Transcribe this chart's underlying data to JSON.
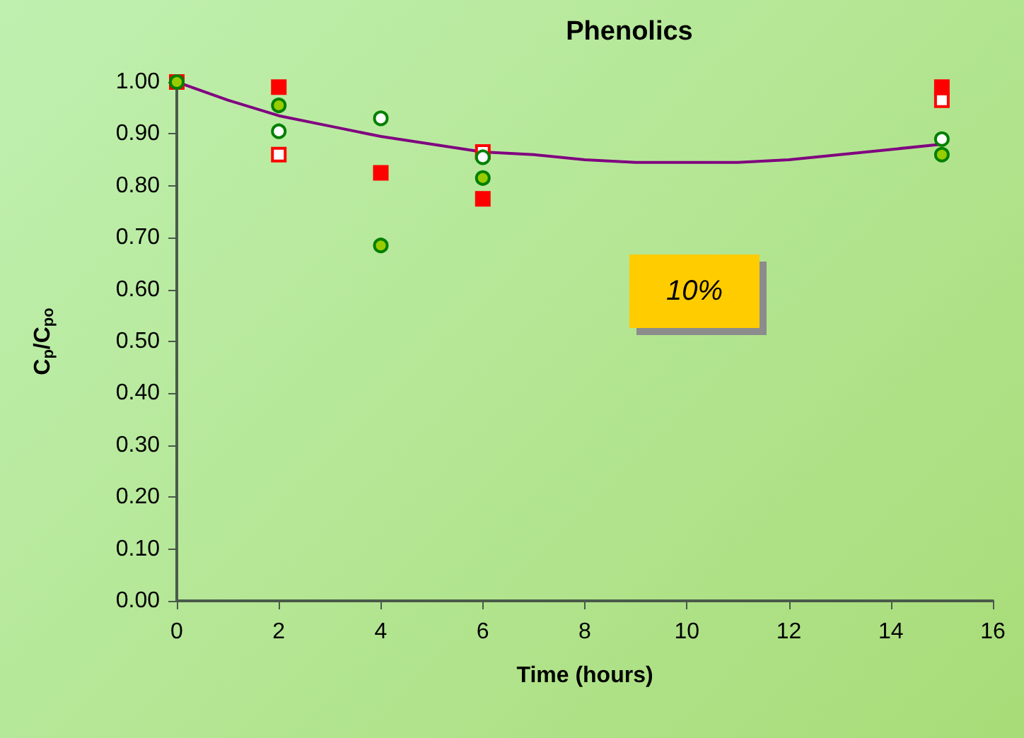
{
  "chart_data": {
    "type": "scatter",
    "title": "Phenolics",
    "xlabel": "Time (hours)",
    "ylabel": "C$_{p}$/C$_{po}$",
    "annotations": [
      "10%"
    ],
    "x": [
      0,
      2,
      4,
      6,
      15
    ],
    "xlim": [
      0,
      16
    ],
    "xticks": [
      0,
      2,
      4,
      6,
      8,
      10,
      12,
      14,
      16
    ],
    "ylim": [
      0,
      1
    ],
    "yticks": [
      {
        "value": 0,
        "label": "0.00"
      },
      {
        "value": 0.1,
        "label": "0.10"
      },
      {
        "value": 0.2,
        "label": "0.20"
      },
      {
        "value": 0.3,
        "label": "0.30"
      },
      {
        "value": 0.4,
        "label": "0.40"
      },
      {
        "value": 0.5,
        "label": "0.50"
      },
      {
        "value": 0.6,
        "label": "0.60"
      },
      {
        "value": 0.7,
        "label": "0.70"
      },
      {
        "value": 0.8,
        "label": "0.80"
      },
      {
        "value": 0.9,
        "label": "0.90"
      },
      {
        "value": 1,
        "label": "1.00"
      }
    ],
    "grid": false,
    "series": [
      {
        "marker": "square",
        "color": "#ffffff",
        "values": [
          null,
          0.86,
          null,
          0.865,
          0.965
        ]
      },
      {
        "marker": "square",
        "color": "#ff0000",
        "values": [
          1.0,
          0.99,
          0.825,
          0.775,
          0.99
        ]
      },
      {
        "marker": "circle",
        "color": "#ffffff",
        "values": [
          null,
          0.905,
          0.93,
          0.855,
          0.89
        ]
      },
      {
        "marker": "circle",
        "color": "#99cc00",
        "values": [
          1.0,
          0.955,
          0.685,
          0.815,
          0.86
        ]
      },
      {
        "type": "line",
        "marker": "none",
        "color": "#800080",
        "x": [
          0,
          1,
          2,
          3,
          4,
          5,
          6,
          7,
          8,
          9,
          10,
          11,
          12,
          13,
          14,
          15
        ],
        "values": [
          1.0,
          0.965,
          0.935,
          0.915,
          0.895,
          0.88,
          0.865,
          0.86,
          0.85,
          0.845,
          0.845,
          0.845,
          0.85,
          0.86,
          0.87,
          0.88
        ]
      }
    ]
  }
}
